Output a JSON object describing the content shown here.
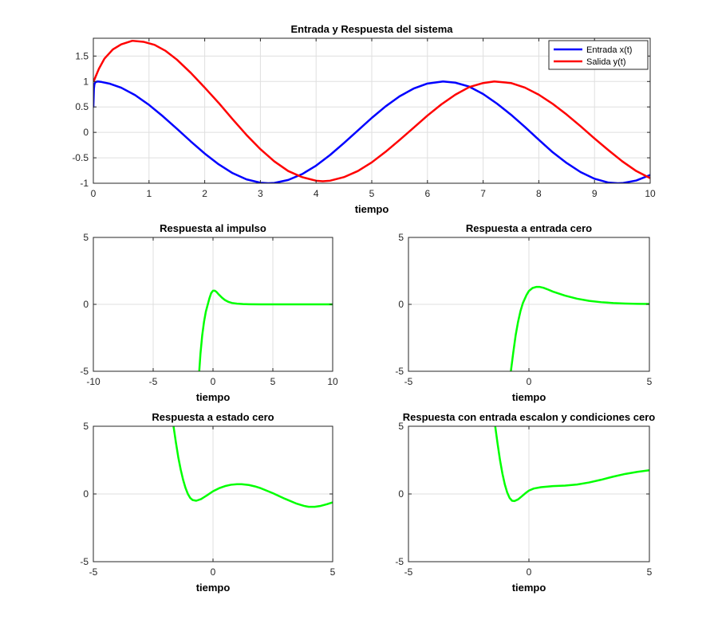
{
  "figure": {
    "background": "#ffffff",
    "axes_color": "#262626",
    "grid_color": "#dfdfdf"
  },
  "chart_data": [
    {
      "type": "line",
      "title": "Entrada y Respuesta del sistema",
      "xlabel": "tiempo",
      "ylabel": "",
      "xlim": [
        0,
        10
      ],
      "ylim": [
        -1,
        1.85
      ],
      "xticks": [
        0,
        1,
        2,
        3,
        4,
        5,
        6,
        7,
        8,
        9,
        10
      ],
      "yticks": [
        -1,
        -0.5,
        0,
        0.5,
        1,
        1.5
      ],
      "grid": true,
      "legend": "top-right",
      "series": [
        {
          "name": "Entrada x(t)",
          "color": "#0000ff",
          "x": [
            0,
            0.01,
            0.02,
            0.04,
            0.08,
            0.15,
            0.3,
            0.5,
            0.75,
            1,
            1.25,
            1.5,
            1.75,
            2,
            2.25,
            2.5,
            2.75,
            3,
            3.14,
            3.25,
            3.5,
            3.75,
            4,
            4.25,
            4.5,
            4.75,
            5,
            5.25,
            5.5,
            5.75,
            6,
            6.28,
            6.5,
            6.75,
            7,
            7.25,
            7.5,
            7.75,
            8,
            8.25,
            8.5,
            8.75,
            9,
            9.25,
            9.42,
            9.5,
            9.75,
            10
          ],
          "y": [
            0.5,
            0.86,
            0.95,
            0.99,
            1.0,
            0.99,
            0.955,
            0.878,
            0.732,
            0.54,
            0.315,
            0.071,
            -0.178,
            -0.416,
            -0.628,
            -0.801,
            -0.924,
            -0.99,
            -1.0,
            -0.994,
            -0.936,
            -0.82,
            -0.654,
            -0.446,
            -0.211,
            0.036,
            0.284,
            0.512,
            0.709,
            0.86,
            0.96,
            1.0,
            0.977,
            0.899,
            0.754,
            0.564,
            0.347,
            0.107,
            -0.146,
            -0.392,
            -0.602,
            -0.781,
            -0.911,
            -0.987,
            -1.0,
            -0.997,
            -0.946,
            -0.839
          ]
        },
        {
          "name": "Salida y(t)",
          "color": "#ff0000",
          "x": [
            0,
            0.02,
            0.05,
            0.1,
            0.2,
            0.35,
            0.5,
            0.7,
            0.9,
            1.1,
            1.3,
            1.5,
            1.75,
            2,
            2.25,
            2.5,
            2.75,
            3,
            3.25,
            3.5,
            3.75,
            4,
            4.12,
            4.25,
            4.5,
            4.75,
            5,
            5.25,
            5.5,
            5.75,
            6,
            6.25,
            6.5,
            6.75,
            7,
            7.2,
            7.5,
            7.75,
            8,
            8.25,
            8.5,
            8.75,
            9,
            9.25,
            9.5,
            9.75,
            10
          ],
          "y": [
            1.0,
            1.04,
            1.12,
            1.25,
            1.45,
            1.63,
            1.73,
            1.8,
            1.78,
            1.72,
            1.6,
            1.43,
            1.17,
            0.88,
            0.58,
            0.26,
            -0.05,
            -0.33,
            -0.57,
            -0.76,
            -0.88,
            -0.95,
            -0.96,
            -0.95,
            -0.88,
            -0.76,
            -0.59,
            -0.38,
            -0.15,
            0.09,
            0.33,
            0.55,
            0.74,
            0.89,
            0.97,
            1.0,
            0.97,
            0.88,
            0.74,
            0.56,
            0.35,
            0.12,
            -0.12,
            -0.35,
            -0.57,
            -0.76,
            -0.9
          ]
        }
      ]
    },
    {
      "type": "line",
      "title": "Respuesta al impulso",
      "xlabel": "tiempo",
      "ylabel": "",
      "xlim": [
        -10,
        10
      ],
      "ylim": [
        -5,
        5
      ],
      "xticks": [
        -10,
        -5,
        0,
        5,
        10
      ],
      "yticks": [
        -5,
        0,
        5
      ],
      "grid": true,
      "series": [
        {
          "color": "#00ff00",
          "x": [
            -1.15,
            -1.05,
            -0.9,
            -0.75,
            -0.6,
            -0.45,
            -0.3,
            -0.15,
            0,
            0.15,
            0.3,
            0.5,
            0.75,
            1,
            1.3,
            1.6,
            2,
            2.5,
            3,
            4,
            5,
            6,
            7,
            8,
            9,
            10
          ],
          "y": [
            -5,
            -3.7,
            -2.3,
            -1.3,
            -0.55,
            -0.05,
            0.45,
            0.85,
            1.02,
            1.02,
            0.92,
            0.72,
            0.5,
            0.32,
            0.18,
            0.1,
            0.05,
            0.02,
            0.01,
            0.0,
            0.0,
            0.0,
            0.0,
            0.0,
            0.0,
            0.0
          ]
        }
      ]
    },
    {
      "type": "line",
      "title": "Respuesta a entrada cero",
      "xlabel": "tiempo",
      "ylabel": "",
      "xlim": [
        -5,
        5
      ],
      "ylim": [
        -5,
        5
      ],
      "xticks": [
        -5,
        0,
        5
      ],
      "yticks": [
        -5,
        0,
        5
      ],
      "grid": true,
      "series": [
        {
          "color": "#00ff00",
          "x": [
            -0.75,
            -0.65,
            -0.55,
            -0.45,
            -0.35,
            -0.25,
            -0.1,
            0,
            0.15,
            0.3,
            0.45,
            0.6,
            0.8,
            1,
            1.5,
            2,
            2.5,
            3,
            3.5,
            4,
            4.5,
            5
          ],
          "y": [
            -5,
            -3.6,
            -2.3,
            -1.3,
            -0.5,
            0.1,
            0.7,
            1.0,
            1.22,
            1.3,
            1.3,
            1.24,
            1.1,
            0.95,
            0.65,
            0.42,
            0.26,
            0.16,
            0.1,
            0.06,
            0.04,
            0.03
          ]
        }
      ]
    },
    {
      "type": "line",
      "title": "Respuesta a estado cero",
      "xlabel": "tiempo",
      "ylabel": "",
      "xlim": [
        -5,
        5
      ],
      "ylim": [
        -5,
        5
      ],
      "xticks": [
        -5,
        0,
        5
      ],
      "yticks": [
        -5,
        0,
        5
      ],
      "grid": true,
      "series": [
        {
          "color": "#00ff00",
          "x": [
            -1.65,
            -1.55,
            -1.45,
            -1.35,
            -1.25,
            -1.15,
            -1.05,
            -0.95,
            -0.85,
            -0.7,
            -0.5,
            -0.25,
            0,
            0.25,
            0.5,
            0.75,
            1,
            1.2,
            1.5,
            1.75,
            2,
            2.5,
            3,
            3.5,
            3.8,
            4,
            4.25,
            4.5,
            4.75,
            5
          ],
          "y": [
            5,
            3.8,
            2.7,
            1.8,
            1.05,
            0.45,
            0.0,
            -0.3,
            -0.45,
            -0.5,
            -0.38,
            -0.1,
            0.2,
            0.42,
            0.58,
            0.68,
            0.72,
            0.72,
            0.66,
            0.56,
            0.42,
            0.06,
            -0.35,
            -0.72,
            -0.88,
            -0.95,
            -0.95,
            -0.88,
            -0.76,
            -0.62
          ]
        }
      ]
    },
    {
      "type": "line",
      "title": "Respuesta con entrada escalon y condiciones cero",
      "xlabel": "tiempo",
      "ylabel": "",
      "xlim": [
        -5,
        5
      ],
      "ylim": [
        -5,
        5
      ],
      "xticks": [
        -5,
        0,
        5
      ],
      "yticks": [
        -5,
        0,
        5
      ],
      "grid": true,
      "series": [
        {
          "color": "#00ff00",
          "x": [
            -1.4,
            -1.3,
            -1.2,
            -1.1,
            -1.0,
            -0.9,
            -0.8,
            -0.7,
            -0.6,
            -0.45,
            -0.3,
            -0.15,
            0,
            0.2,
            0.5,
            1,
            1.5,
            2,
            2.5,
            3,
            3.5,
            4,
            4.5,
            5
          ],
          "y": [
            5,
            3.7,
            2.5,
            1.5,
            0.7,
            0.1,
            -0.3,
            -0.5,
            -0.52,
            -0.4,
            -0.18,
            0.05,
            0.25,
            0.4,
            0.5,
            0.58,
            0.62,
            0.7,
            0.85,
            1.05,
            1.28,
            1.48,
            1.63,
            1.75
          ]
        }
      ]
    }
  ]
}
